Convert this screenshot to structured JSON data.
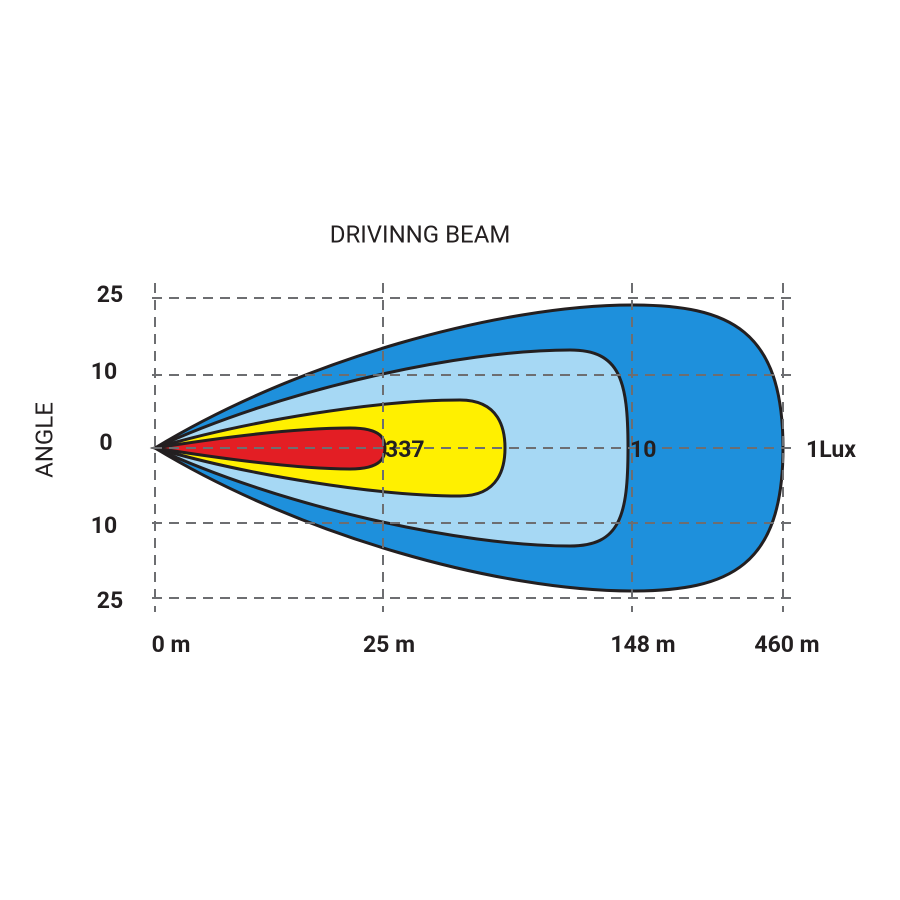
{
  "title": "DRIVINNG  BEAM",
  "y_axis_label": "ANGLE",
  "y_labels": [
    "25",
    "10",
    "0",
    "10",
    "25"
  ],
  "x_labels": [
    "0 m",
    "25 m",
    "148 m",
    "460 m"
  ],
  "zone_labels": [
    "337",
    "10",
    "1Lux"
  ]
}
